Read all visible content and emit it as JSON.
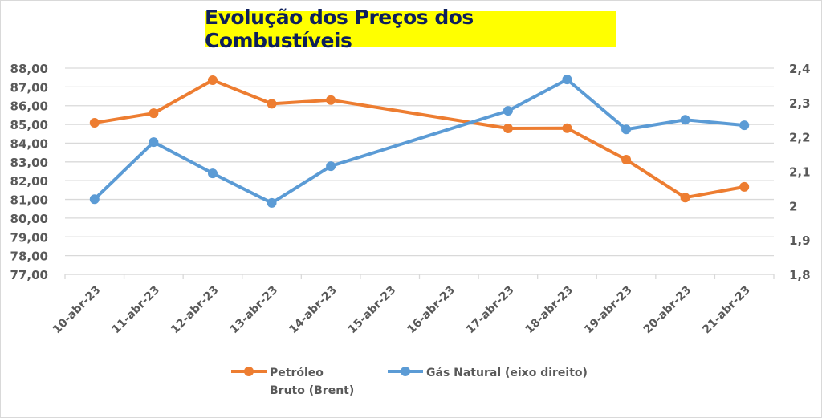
{
  "chart_data": {
    "type": "line",
    "title": "Evolução dos Preços dos Combustíveis",
    "xlabel": "",
    "ylabel": "",
    "categories": [
      "10-abr-23",
      "11-abr-23",
      "12-abr-23",
      "13-abr-23",
      "14-abr-23",
      "15-abr-23",
      "16-abr-23",
      "17-abr-23",
      "18-abr-23",
      "19-abr-23",
      "20-abr-23",
      "21-abr-23"
    ],
    "series": [
      {
        "name": "Petróleo Bruto (Brent)",
        "legend_lines": [
          "Petróleo",
          "Bruto (Brent)"
        ],
        "axis": "left",
        "color": "#ed7d31",
        "values": [
          85.09,
          85.6,
          87.36,
          86.1,
          86.3,
          null,
          null,
          84.79,
          84.8,
          83.12,
          81.1,
          81.67
        ]
      },
      {
        "name": "Gás Natural (eixo direito)",
        "legend_lines": [
          "Gás Natural (eixo direito)"
        ],
        "axis": "right",
        "color": "#5b9bd5",
        "values": [
          2.019,
          2.185,
          2.094,
          2.008,
          2.115,
          null,
          null,
          2.276,
          2.367,
          2.222,
          2.25,
          2.234
        ]
      }
    ],
    "y_left": {
      "ylim": [
        77,
        88
      ],
      "ticks": [
        88,
        87,
        86,
        85,
        84,
        83,
        82,
        81,
        80,
        79,
        78,
        77
      ],
      "tick_labels": [
        "88,00",
        "87,00",
        "86,00",
        "85,00",
        "84,00",
        "83,00",
        "82,00",
        "81,00",
        "80,00",
        "79,00",
        "78,00",
        "77,00"
      ]
    },
    "y_right": {
      "ylim": [
        1.8,
        2.4
      ],
      "ticks": [
        2.4,
        2.3,
        2.2,
        2.1,
        2.0,
        1.9,
        1.8
      ],
      "tick_labels": [
        "2,4",
        "2,3",
        "2,2",
        "2,1",
        "2",
        "1,9",
        "1,8"
      ]
    },
    "grid": true,
    "legend_position": "bottom",
    "gaps": "connected"
  },
  "title_highlight_color": "#ffff00",
  "title_text_color": "#0d1f5c"
}
